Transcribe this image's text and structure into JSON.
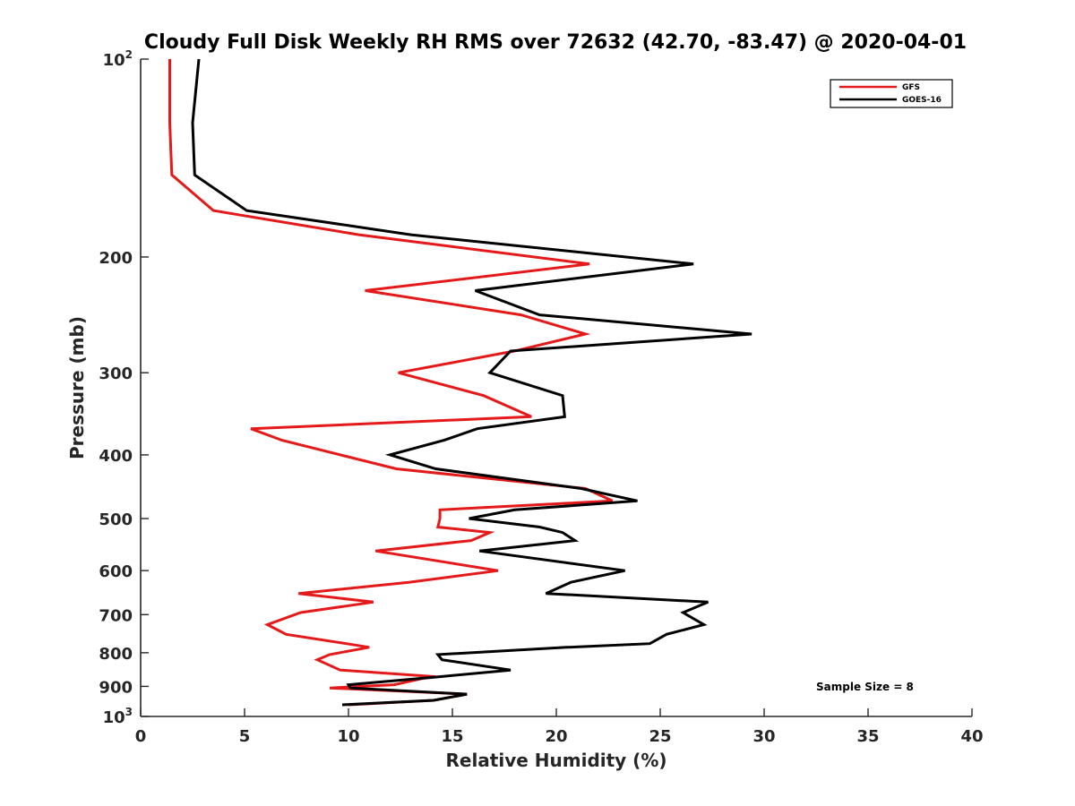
{
  "chart_data": {
    "type": "line",
    "title": "Cloudy Full Disk Weekly RH RMS over 72632 (42.70, -83.47) @ 2020-04-01",
    "xlabel": "Relative Humidity (%)",
    "ylabel": "Pressure (mb)",
    "xlim": [
      0,
      40
    ],
    "ylim": [
      1000,
      100
    ],
    "y_scale": "log",
    "y_reversed": true,
    "grid": false,
    "x_ticks": [
      "0",
      "5",
      "10",
      "15",
      "20",
      "25",
      "30",
      "35",
      "40"
    ],
    "x_tick_values": [
      0,
      5,
      10,
      15,
      20,
      25,
      30,
      35,
      40
    ],
    "y_ticks": [
      {
        "value": 100,
        "base": "10",
        "exp": "2"
      },
      {
        "value": 200,
        "label": "200"
      },
      {
        "value": 300,
        "label": "300"
      },
      {
        "value": 400,
        "label": "400"
      },
      {
        "value": 500,
        "label": "500"
      },
      {
        "value": 600,
        "label": "600"
      },
      {
        "value": 700,
        "label": "700"
      },
      {
        "value": 800,
        "label": "800"
      },
      {
        "value": 900,
        "label": "900"
      },
      {
        "value": 1000,
        "base": "10",
        "exp": "3"
      }
    ],
    "legend_position": "top-right",
    "series": [
      {
        "name": "GFS",
        "color": "#e41a1a",
        "points": [
          [
            1.4,
            100
          ],
          [
            1.4,
            125
          ],
          [
            1.5,
            150
          ],
          [
            3.5,
            170
          ],
          [
            10.5,
            185
          ],
          [
            21.6,
            205
          ],
          [
            10.8,
            225
          ],
          [
            18.3,
            245
          ],
          [
            21.4,
            262
          ],
          [
            18.0,
            278
          ],
          [
            12.4,
            300
          ],
          [
            16.5,
            325
          ],
          [
            18.8,
            350
          ],
          [
            5.3,
            365
          ],
          [
            6.8,
            380
          ],
          [
            12.3,
            420
          ],
          [
            21.4,
            450
          ],
          [
            22.7,
            470
          ],
          [
            14.4,
            485
          ],
          [
            14.4,
            500
          ],
          [
            14.3,
            515
          ],
          [
            16.8,
            525
          ],
          [
            15.9,
            540
          ],
          [
            11.3,
            560
          ],
          [
            17.2,
            600
          ],
          [
            12.9,
            625
          ],
          [
            7.6,
            650
          ],
          [
            11.2,
            670
          ],
          [
            7.7,
            695
          ],
          [
            6.1,
            725
          ],
          [
            7.0,
            750
          ],
          [
            9.9,
            775
          ],
          [
            11.0,
            785
          ],
          [
            9.1,
            805
          ],
          [
            8.5,
            820
          ],
          [
            9.6,
            850
          ],
          [
            14.2,
            870
          ],
          [
            13.6,
            875
          ],
          [
            12.2,
            895
          ],
          [
            9.1,
            905
          ],
          [
            15.7,
            925
          ],
          [
            14.1,
            945
          ],
          [
            10.0,
            960
          ]
        ]
      },
      {
        "name": "GOES-16",
        "color": "#000000",
        "points": [
          [
            2.8,
            100
          ],
          [
            2.5,
            125
          ],
          [
            2.6,
            150
          ],
          [
            5.1,
            170
          ],
          [
            13.0,
            185
          ],
          [
            26.6,
            205
          ],
          [
            16.1,
            225
          ],
          [
            19.2,
            245
          ],
          [
            29.4,
            262
          ],
          [
            17.8,
            278
          ],
          [
            16.8,
            300
          ],
          [
            20.3,
            325
          ],
          [
            20.4,
            350
          ],
          [
            16.2,
            365
          ],
          [
            14.6,
            380
          ],
          [
            12.0,
            400
          ],
          [
            14.2,
            420
          ],
          [
            21.2,
            450
          ],
          [
            23.9,
            470
          ],
          [
            18.0,
            485
          ],
          [
            15.8,
            500
          ],
          [
            19.2,
            515
          ],
          [
            20.3,
            525
          ],
          [
            20.9,
            540
          ],
          [
            16.3,
            560
          ],
          [
            23.3,
            600
          ],
          [
            20.7,
            625
          ],
          [
            19.5,
            650
          ],
          [
            27.3,
            670
          ],
          [
            26.1,
            695
          ],
          [
            27.1,
            725
          ],
          [
            25.3,
            750
          ],
          [
            24.5,
            775
          ],
          [
            20.5,
            785
          ],
          [
            14.3,
            805
          ],
          [
            14.5,
            820
          ],
          [
            17.8,
            850
          ],
          [
            14.4,
            870
          ],
          [
            10.0,
            895
          ],
          [
            10.1,
            905
          ],
          [
            15.7,
            925
          ],
          [
            14.1,
            945
          ],
          [
            9.7,
            960
          ]
        ]
      }
    ],
    "annotation": "Sample Size = 8"
  }
}
